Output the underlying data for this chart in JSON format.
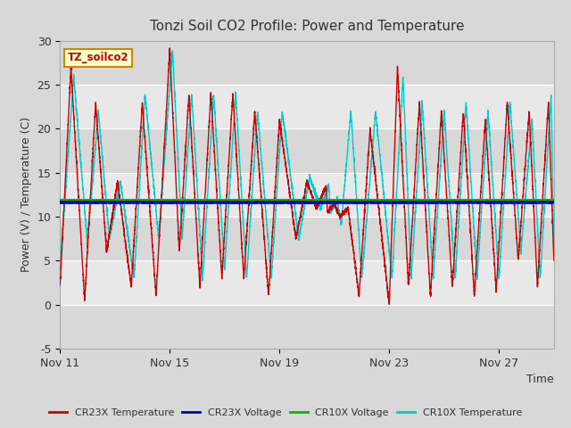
{
  "title": "Tonzi Soil CO2 Profile: Power and Temperature",
  "xlabel": "Time",
  "ylabel": "Power (V) / Temperature (C)",
  "ylim": [
    -5,
    30
  ],
  "yticks": [
    -5,
    0,
    5,
    10,
    15,
    20,
    25,
    30
  ],
  "xtick_labels": [
    "Nov 11",
    "Nov 15",
    "Nov 19",
    "Nov 23",
    "Nov 27"
  ],
  "xtick_positions": [
    0,
    4,
    8,
    12,
    16
  ],
  "legend_label": "TZ_soilco2",
  "bg_color": "#d8d8d8",
  "plot_bg_color": "#e8e8e8",
  "cr23x_temp_color": "#cc0000",
  "cr23x_volt_color": "#0000bb",
  "cr10x_volt_color": "#00bb00",
  "cr10x_temp_color": "#00cccc",
  "cr23x_volt_level": 11.65,
  "cr10x_volt_level": 11.85,
  "grid_color": "#ffffff",
  "title_fontsize": 11,
  "axis_fontsize": 9,
  "tick_fontsize": 9,
  "total_days": 18,
  "peak_times_red": [
    0.4,
    1.3,
    2.1,
    3.0,
    4.0,
    4.7,
    5.5,
    6.3,
    7.1,
    8.0,
    9.0,
    9.7,
    10.0,
    10.5,
    11.3,
    12.3,
    13.1,
    13.9,
    14.7,
    15.5,
    16.3,
    17.1,
    17.8
  ],
  "peak_heights_red": [
    27,
    23,
    14,
    23,
    29,
    24,
    24,
    24,
    22,
    21,
    14,
    13.5,
    11.5,
    11,
    20,
    27,
    23,
    22,
    22,
    21,
    23,
    22,
    23
  ],
  "valley_times_red": [
    0.0,
    0.9,
    1.7,
    2.6,
    3.5,
    4.35,
    5.1,
    5.9,
    6.7,
    7.6,
    8.6,
    9.35,
    9.75,
    10.2,
    10.9,
    12.0,
    12.7,
    13.5,
    14.3,
    15.1,
    15.9,
    16.7,
    17.4,
    18.0
  ],
  "valley_heights_red": [
    2,
    0.5,
    6,
    2,
    1,
    6,
    2,
    3,
    3,
    1,
    7.5,
    11,
    10.5,
    10,
    1,
    0,
    2,
    1,
    2,
    1,
    1.5,
    5,
    2,
    5
  ],
  "peak_times_cyan": [
    0.5,
    1.4,
    2.2,
    3.1,
    4.1,
    4.8,
    5.6,
    6.4,
    7.2,
    8.1,
    9.1,
    9.8,
    10.1,
    10.6,
    11.5,
    12.5,
    13.2,
    14.0,
    14.8,
    15.6,
    16.4,
    17.2,
    17.9
  ],
  "peak_heights_cyan": [
    26,
    22,
    14,
    24,
    29,
    24,
    24,
    24,
    22,
    22,
    14.5,
    13.5,
    12,
    22,
    22,
    26,
    23,
    22,
    23,
    22,
    23,
    21,
    24
  ],
  "valley_times_cyan": [
    0.0,
    1.0,
    1.8,
    2.7,
    3.6,
    4.45,
    5.2,
    6.0,
    6.8,
    7.7,
    8.7,
    9.5,
    9.85,
    10.25,
    11.0,
    12.1,
    12.8,
    13.6,
    14.4,
    15.2,
    16.0,
    16.8,
    17.5,
    18.0
  ],
  "valley_heights_cyan": [
    4,
    7,
    7.5,
    3,
    7.5,
    7.5,
    3,
    4,
    3,
    3,
    7.5,
    11,
    10.5,
    9,
    3,
    3,
    3,
    3,
    3,
    3,
    3,
    6,
    3,
    6
  ]
}
